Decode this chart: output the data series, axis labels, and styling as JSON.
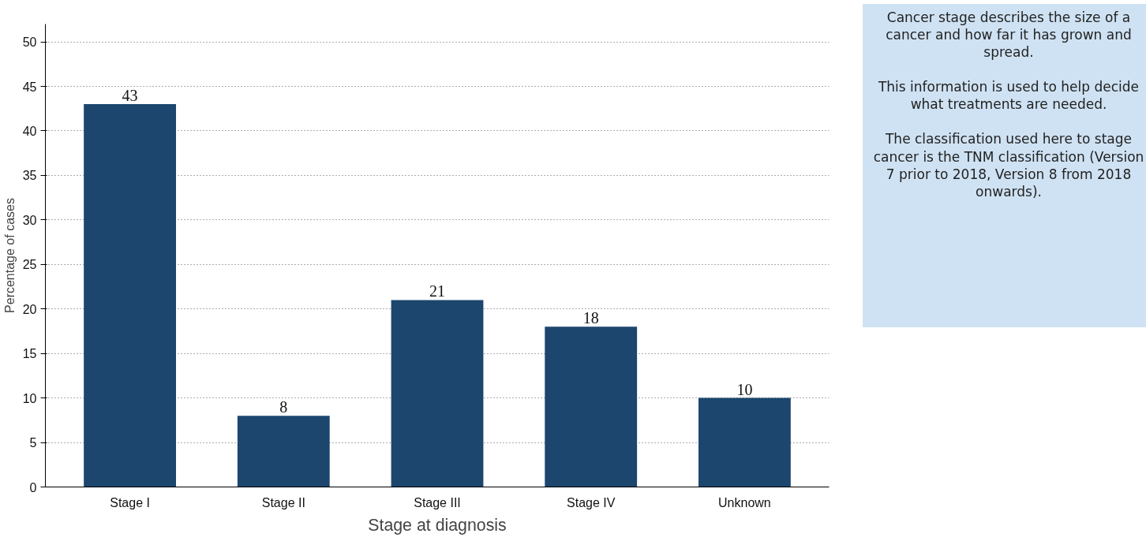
{
  "chart_data": {
    "type": "bar",
    "xlabel": "Stage at diagnosis",
    "ylabel": "Percentage of cases",
    "categories": [
      "Stage I",
      "Stage II",
      "Stage III",
      "Stage IV",
      "Unknown"
    ],
    "values": [
      43,
      8,
      21,
      18,
      10
    ],
    "color": "#1c466e",
    "ylim": [
      0,
      52
    ],
    "yticks": [
      0,
      5,
      10,
      15,
      20,
      25,
      30,
      35,
      40,
      45,
      50
    ],
    "grid": "y",
    "data_labels": true,
    "annotations": [
      "Cancer stage describes the size of a cancer and how far it has grown and spread.",
      "This information is used to help decide what treatments are needed.",
      "The classification used here to stage cancer is the TNM classification (Version 7 prior to 2018, Version 8 from 2018 onwards)."
    ]
  }
}
